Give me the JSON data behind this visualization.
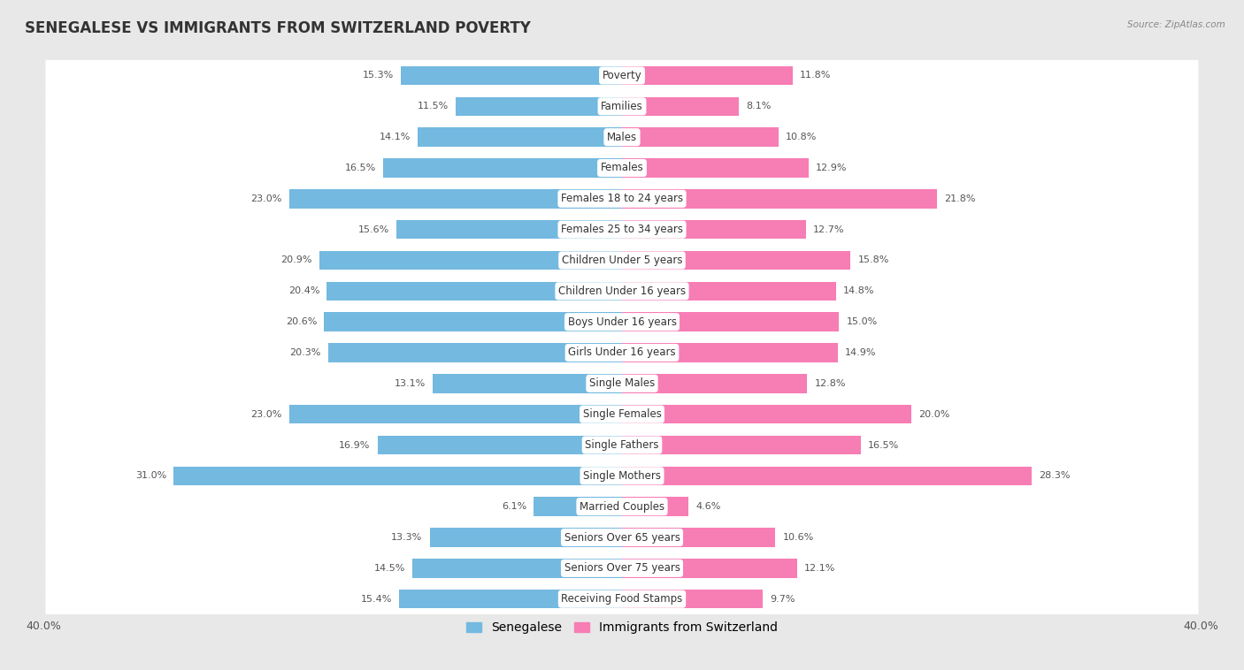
{
  "title": "SENEGALESE VS IMMIGRANTS FROM SWITZERLAND POVERTY",
  "source": "Source: ZipAtlas.com",
  "categories": [
    "Poverty",
    "Families",
    "Males",
    "Females",
    "Females 18 to 24 years",
    "Females 25 to 34 years",
    "Children Under 5 years",
    "Children Under 16 years",
    "Boys Under 16 years",
    "Girls Under 16 years",
    "Single Males",
    "Single Females",
    "Single Fathers",
    "Single Mothers",
    "Married Couples",
    "Seniors Over 65 years",
    "Seniors Over 75 years",
    "Receiving Food Stamps"
  ],
  "senegalese": [
    15.3,
    11.5,
    14.1,
    16.5,
    23.0,
    15.6,
    20.9,
    20.4,
    20.6,
    20.3,
    13.1,
    23.0,
    16.9,
    31.0,
    6.1,
    13.3,
    14.5,
    15.4
  ],
  "immigrants": [
    11.8,
    8.1,
    10.8,
    12.9,
    21.8,
    12.7,
    15.8,
    14.8,
    15.0,
    14.9,
    12.8,
    20.0,
    16.5,
    28.3,
    4.6,
    10.6,
    12.1,
    9.7
  ],
  "senegalese_color": "#74b9e0",
  "immigrants_color": "#f77db5",
  "background_color": "#e8e8e8",
  "row_bg_color": "#f5f5f5",
  "xlim": 40.0,
  "bar_height": 0.62,
  "fontsize_title": 12,
  "fontsize_labels": 8.5,
  "fontsize_values": 8,
  "fontsize_axis": 9,
  "fontsize_legend": 10,
  "legend_labels": [
    "Senegalese",
    "Immigrants from Switzerland"
  ]
}
